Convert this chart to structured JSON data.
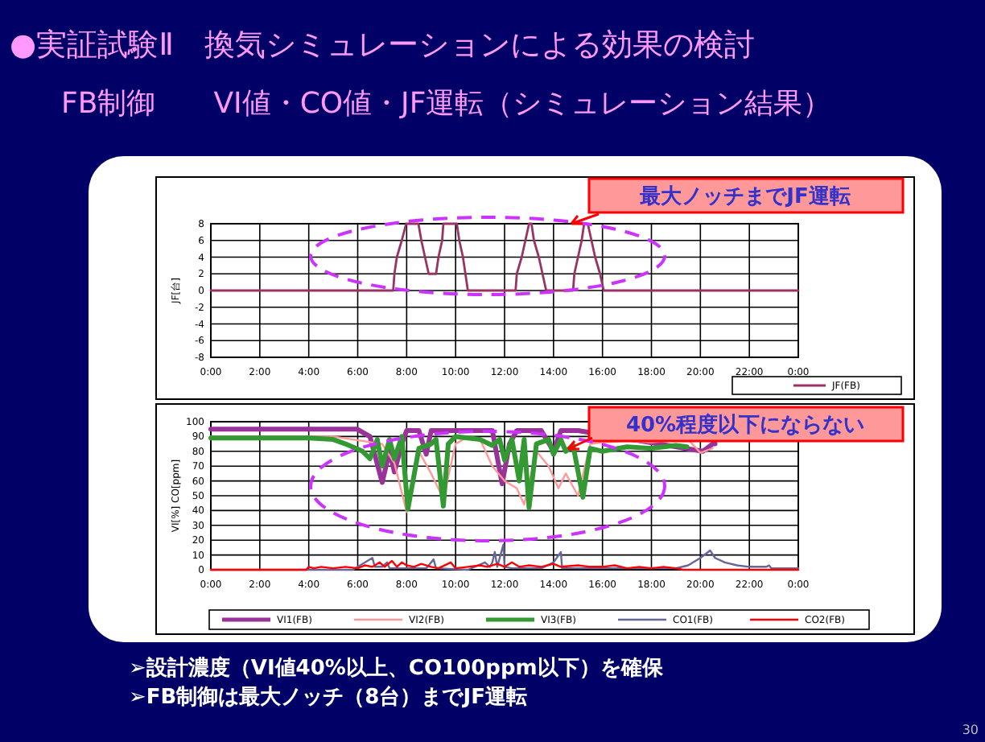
{
  "chart_data": [
    {
      "type": "line",
      "title": "●実証試験Ⅱ　換気シミュレーションによる効果の検討",
      "subtitle": "FB制御　　VI値・CO値・JF運転（シミュレーション結果）",
      "ylabel": "JF[台]",
      "annotations": [
        "最大ノッチまでJF運転"
      ],
      "xlim": [
        0,
        24
      ],
      "xticks": [
        {
          "value": 0,
          "label": "0:00"
        },
        {
          "value": 2,
          "label": "2:00"
        },
        {
          "value": 4,
          "label": "4:00"
        },
        {
          "value": 6,
          "label": "6:00"
        },
        {
          "value": 8,
          "label": "8:00"
        },
        {
          "value": 10,
          "label": "10:00"
        },
        {
          "value": 12,
          "label": "12:00"
        },
        {
          "value": 14,
          "label": "14:00"
        },
        {
          "value": 16,
          "label": "16:00"
        },
        {
          "value": 18,
          "label": "18:00"
        },
        {
          "value": 20,
          "label": "20:00"
        },
        {
          "value": 22,
          "label": "22:00"
        },
        {
          "value": 24,
          "label": "0:00"
        }
      ],
      "ylim": [
        -8,
        8
      ],
      "yticks": [
        8,
        6,
        4,
        2,
        0,
        -2,
        -4,
        -6,
        -8
      ],
      "grid": true,
      "legend": "bottom right",
      "line_style": "solid",
      "series": [
        {
          "name": "JF(FB)",
          "color": "#993366",
          "x": [
            0,
            7.45,
            7.5,
            7.6,
            7.8,
            7.98,
            8.48,
            8.6,
            8.75,
            8.9,
            9.2,
            9.3,
            9.45,
            9.5,
            10.05,
            10.15,
            10.3,
            10.4,
            10.5,
            12.45,
            12.5,
            12.7,
            12.85,
            13.0,
            13.1,
            13.2,
            13.4,
            13.55,
            13.7,
            14.8,
            14.85,
            15.0,
            15.15,
            15.25,
            15.4,
            15.55,
            15.7,
            15.9,
            16.05,
            24
          ],
          "values": [
            0,
            0,
            2,
            4,
            6,
            8,
            8,
            6,
            4,
            2,
            2,
            4,
            6,
            8,
            8,
            6,
            4,
            2,
            0,
            0,
            2,
            4,
            6,
            8,
            8,
            6,
            4,
            2,
            0,
            0,
            2,
            4,
            6,
            8,
            8,
            6,
            4,
            2,
            0,
            0
          ]
        }
      ]
    },
    {
      "type": "line",
      "ylabel": "VI[%] CO[ppm]",
      "annotations": [
        "40%程度以下にならない",
        "➢設計濃度（VI値40%以上、CO100ppm以下）を確保",
        "➢FB制御は最大ノッチ（8台）までJF運転",
        "30"
      ],
      "xlim": [
        0,
        24
      ],
      "xticks": [
        {
          "value": 0,
          "label": "0:00"
        },
        {
          "value": 2,
          "label": "2:00"
        },
        {
          "value": 4,
          "label": "4:00"
        },
        {
          "value": 6,
          "label": "6:00"
        },
        {
          "value": 8,
          "label": "8:00"
        },
        {
          "value": 10,
          "label": "10:00"
        },
        {
          "value": 12,
          "label": "12:00"
        },
        {
          "value": 14,
          "label": "14:00"
        },
        {
          "value": 16,
          "label": "16:00"
        },
        {
          "value": 18,
          "label": "18:00"
        },
        {
          "value": 20,
          "label": "20:00"
        },
        {
          "value": 22,
          "label": "22:00"
        },
        {
          "value": 24,
          "label": "0:00"
        }
      ],
      "ylim": [
        0,
        100
      ],
      "yticks": [
        100,
        90,
        80,
        70,
        60,
        50,
        40,
        30,
        20,
        10,
        0
      ],
      "grid": true,
      "legend": "bottom",
      "line_style": "solid",
      "series": [
        {
          "name": "VI1(FB)",
          "color": "#993399",
          "x": [
            0,
            5.97,
            6.5,
            7.0,
            7.3,
            7.5,
            7.8,
            8.0,
            8.5,
            8.8,
            9.0,
            9.3,
            10,
            11.5,
            11.9,
            12.2,
            12.5,
            13.5,
            14.0,
            14.3,
            15,
            20.1,
            20.5,
            20.6
          ],
          "values": [
            95,
            95,
            90,
            59,
            80,
            66,
            85,
            94,
            94,
            78,
            94,
            94,
            94,
            94,
            58,
            85,
            94,
            94,
            80,
            94,
            94,
            80,
            85,
            85
          ]
        },
        {
          "name": "VI2(FB)",
          "color": "#ff9999",
          "x": [
            0,
            5,
            7.0,
            7.5,
            8.0,
            8.5,
            9.0,
            9.5,
            10,
            10.5,
            11,
            11.5,
            12,
            12.5,
            12.8,
            13.3,
            13.8,
            14.2,
            14.5,
            15.0,
            15.5,
            16,
            17,
            18,
            19,
            19.5,
            20,
            20.5
          ],
          "values": [
            90,
            90,
            85,
            72,
            39,
            80,
            65,
            48,
            85,
            90,
            88,
            70,
            60,
            55,
            44,
            80,
            70,
            55,
            65,
            50,
            85,
            86,
            87,
            86,
            88,
            88,
            79,
            82
          ]
        },
        {
          "name": "VI3(FB)",
          "color": "#339933",
          "x": [
            0,
            4,
            5,
            5.5,
            6.2,
            6.5,
            6.8,
            7.0,
            7.3,
            7.5,
            7.8,
            8.05,
            8.5,
            9.0,
            9.2,
            9.5,
            9.7,
            10,
            11,
            11.5,
            11.8,
            12.0,
            12.3,
            12.6,
            12.8,
            13.0,
            13.3,
            13.8,
            14.0,
            14.3,
            14.5,
            14.8,
            15.2,
            15.5,
            16,
            17,
            18,
            19,
            19.45
          ],
          "values": [
            89,
            89,
            88,
            85,
            80,
            75,
            88,
            70,
            88,
            75,
            90,
            41,
            82,
            85,
            88,
            43,
            85,
            90,
            88,
            84,
            88,
            74,
            88,
            60,
            88,
            42,
            85,
            88,
            78,
            88,
            80,
            84,
            49,
            82,
            80,
            83,
            82,
            84,
            83
          ]
        },
        {
          "name": "CO1(FB)",
          "color": "#666699",
          "x": [
            0,
            5.8,
            6.6,
            6.7,
            7.0,
            7.2,
            7.3,
            8.8,
            9.1,
            9.2,
            10.5,
            11.2,
            11.4,
            11.5,
            11.6,
            11.7,
            11.95,
            12.0,
            12.3,
            13.5,
            14.0,
            14.3,
            14.35,
            19.0,
            19.5,
            20.0,
            20.4,
            20.6,
            21,
            21.5,
            22,
            22.7,
            22.8,
            22.9,
            24
          ],
          "values": [
            0,
            0,
            8,
            2,
            2,
            5,
            1,
            1,
            7,
            1,
            0,
            5,
            2,
            5,
            12,
            2,
            17,
            2,
            1,
            1,
            5,
            12,
            1,
            1,
            3,
            8,
            13,
            8,
            5,
            3,
            2,
            2,
            3,
            1,
            1
          ]
        },
        {
          "name": "CO2(FB)",
          "color": "#ff0000",
          "x": [
            0,
            3.9,
            4.0,
            4.2,
            4.5,
            5.0,
            5.5,
            6.0,
            6.3,
            6.6,
            6.9,
            7.1,
            7.4,
            7.6,
            7.8,
            8.0,
            8.3,
            8.6,
            9.0,
            9.3,
            9.8,
            10.0,
            10.5,
            11.0,
            11.3,
            11.7,
            12.0,
            12.3,
            12.6,
            13.0,
            13.5,
            14.0,
            14.3,
            15.0,
            15.5,
            16.0,
            16.5,
            17.0,
            17.5,
            18.0,
            18.5,
            19.0,
            19.3,
            24
          ],
          "values": [
            0,
            0,
            2,
            1,
            2,
            1,
            2,
            1,
            3,
            2,
            5,
            2,
            6,
            2,
            5,
            3,
            2,
            4,
            2,
            1,
            5,
            1,
            2,
            3,
            2,
            4,
            2,
            5,
            2,
            3,
            2,
            4,
            2,
            3,
            2,
            2,
            3,
            1,
            2,
            1,
            2,
            1,
            0,
            0
          ]
        }
      ]
    }
  ]
}
